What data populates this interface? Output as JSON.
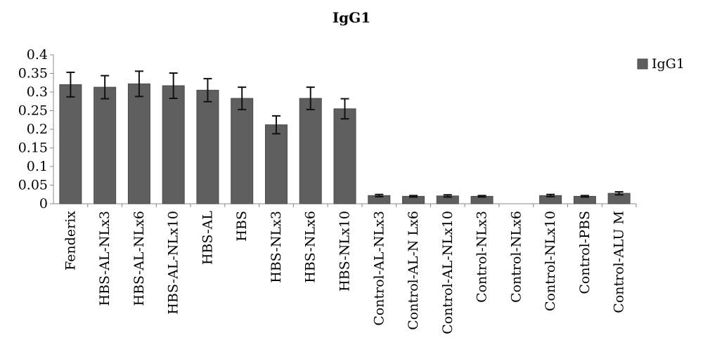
{
  "chart_data": {
    "type": "bar",
    "title": "IgG1",
    "xlabel": "",
    "ylabel": "",
    "ylim": [
      0,
      0.4
    ],
    "yticks": [
      "0",
      "0.05",
      "0.1",
      "0.15",
      "0.2",
      "0.25",
      "0.3",
      "0.35",
      "0.4"
    ],
    "categories": [
      "Fenderix",
      "HBS-AL-NLx3",
      "HBS-AL-NLx6",
      "HBS-AL-NLx10",
      "HBS-AL",
      "HBS",
      "HBS-NLx3",
      "HBS-NLx6",
      "HBS-NLx10",
      "Control-AL-NLx3",
      "Control-AL-N Lx6",
      "Control-AL-NLx10",
      "Control-NLx3",
      "Control-NLx6",
      "Control-NLx10",
      "Control-PBS",
      "Control-ALU M"
    ],
    "series": [
      {
        "name": "IgG1",
        "values": [
          0.32,
          0.313,
          0.322,
          0.317,
          0.305,
          0.283,
          0.212,
          0.283,
          0.255,
          0.022,
          0.02,
          0.021,
          0.02,
          0,
          0.022,
          0.02,
          0.028
        ],
        "errors": [
          0.033,
          0.031,
          0.034,
          0.034,
          0.031,
          0.03,
          0.024,
          0.03,
          0.027,
          0.003,
          0.002,
          0.003,
          0.002,
          0,
          0.003,
          0.002,
          0.004
        ],
        "color": "#5f5f5f"
      }
    ],
    "grid": false,
    "legend_position": "right"
  }
}
